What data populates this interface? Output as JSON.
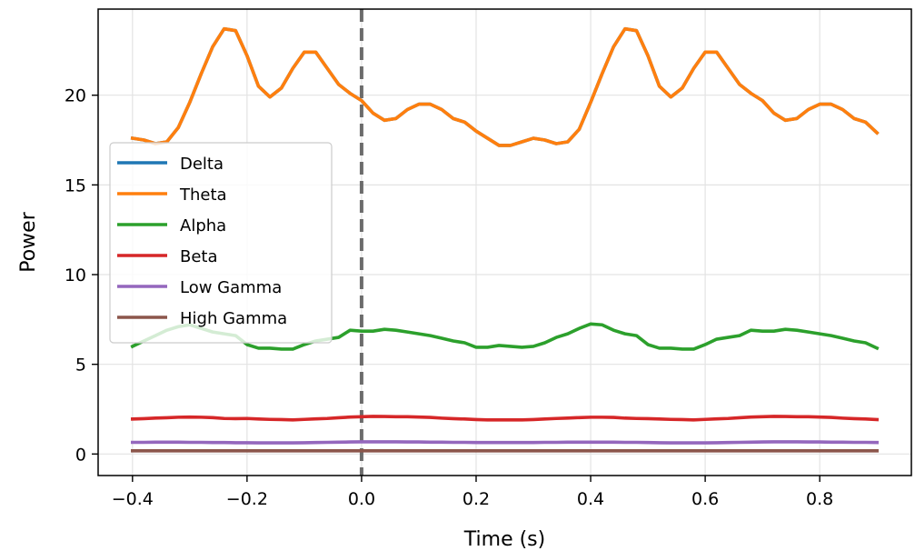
{
  "chart_data": {
    "type": "line",
    "xlabel": "Time (s)",
    "ylabel": "Power",
    "xlim": [
      -0.46,
      0.96
    ],
    "ylim": [
      -1.2,
      24.8
    ],
    "xticks": [
      -0.4,
      -0.2,
      0.0,
      0.2,
      0.4,
      0.6,
      0.8
    ],
    "xtick_labels": [
      "−0.4",
      "−0.2",
      "0.0",
      "0.2",
      "0.4",
      "0.6",
      "0.8"
    ],
    "yticks": [
      0,
      5,
      10,
      15,
      20
    ],
    "ytick_labels": [
      "0",
      "5",
      "10",
      "15",
      "20"
    ],
    "grid": true,
    "legend_position": "center-left",
    "event_marker": {
      "x": 0.0,
      "style": "dashed",
      "color": "#555555"
    },
    "x": [
      -0.4,
      -0.38,
      -0.36,
      -0.34,
      -0.32,
      -0.3,
      -0.28,
      -0.26,
      -0.24,
      -0.22,
      -0.2,
      -0.18,
      -0.16,
      -0.14,
      -0.12,
      -0.1,
      -0.08,
      -0.06,
      -0.04,
      -0.02,
      0.0,
      0.02,
      0.04,
      0.06,
      0.08,
      0.1,
      0.12,
      0.14,
      0.16,
      0.18,
      0.2,
      0.22,
      0.24,
      0.26,
      0.28,
      0.3,
      0.32,
      0.34,
      0.36,
      0.38,
      0.4,
      0.42,
      0.44,
      0.46,
      0.48,
      0.5,
      0.52,
      0.54,
      0.56,
      0.58,
      0.6,
      0.62,
      0.64,
      0.66,
      0.68,
      0.7,
      0.72,
      0.74,
      0.76,
      0.78,
      0.8,
      0.82,
      0.84,
      0.86,
      0.88,
      0.9
    ],
    "series": [
      {
        "name": "Delta",
        "color": "#1f77b4",
        "values": [
          17.6,
          17.5,
          17.3,
          17.4,
          18.2,
          19.6,
          21.2,
          22.7,
          23.7,
          23.6,
          22.2,
          20.5,
          19.9,
          20.4,
          21.5,
          22.4,
          22.4,
          21.5,
          20.6,
          20.1,
          19.7,
          19.0,
          18.6,
          18.7,
          19.2,
          19.5,
          19.5,
          19.2,
          18.7,
          18.5,
          18.0,
          17.6,
          17.2,
          17.2,
          17.4,
          17.6,
          17.5,
          17.3,
          17.4,
          18.1,
          19.6,
          21.2,
          22.7,
          23.7,
          23.6,
          22.2,
          20.5,
          19.9,
          20.4,
          21.5,
          22.4,
          22.4,
          21.5,
          20.6,
          20.1,
          19.7,
          19.0,
          18.6,
          18.7,
          19.2,
          19.5,
          19.5,
          19.2,
          18.7,
          18.5,
          17.9
        ]
      },
      {
        "name": "Theta",
        "color": "#ff7f0e",
        "values": [
          17.6,
          17.5,
          17.3,
          17.4,
          18.2,
          19.6,
          21.2,
          22.7,
          23.7,
          23.6,
          22.2,
          20.5,
          19.9,
          20.4,
          21.5,
          22.4,
          22.4,
          21.5,
          20.6,
          20.1,
          19.7,
          19.0,
          18.6,
          18.7,
          19.2,
          19.5,
          19.5,
          19.2,
          18.7,
          18.5,
          18.0,
          17.6,
          17.2,
          17.2,
          17.4,
          17.6,
          17.5,
          17.3,
          17.4,
          18.1,
          19.6,
          21.2,
          22.7,
          23.7,
          23.6,
          22.2,
          20.5,
          19.9,
          20.4,
          21.5,
          22.4,
          22.4,
          21.5,
          20.6,
          20.1,
          19.7,
          19.0,
          18.6,
          18.7,
          19.2,
          19.5,
          19.5,
          19.2,
          18.7,
          18.5,
          17.9
        ]
      },
      {
        "name": "Alpha",
        "color": "#2ca02c",
        "values": [
          6.0,
          6.3,
          6.6,
          6.9,
          7.1,
          7.2,
          7.0,
          6.8,
          6.7,
          6.6,
          6.1,
          5.9,
          5.9,
          5.85,
          5.85,
          6.1,
          6.3,
          6.4,
          6.5,
          6.9,
          6.85,
          6.85,
          6.95,
          6.9,
          6.8,
          6.7,
          6.6,
          6.45,
          6.3,
          6.2,
          5.95,
          5.95,
          6.05,
          6.0,
          5.95,
          6.0,
          6.2,
          6.5,
          6.7,
          7.0,
          7.25,
          7.2,
          6.9,
          6.7,
          6.6,
          6.1,
          5.9,
          5.9,
          5.85,
          5.85,
          6.1,
          6.4,
          6.5,
          6.6,
          6.9,
          6.85,
          6.85,
          6.95,
          6.9,
          6.8,
          6.7,
          6.6,
          6.45,
          6.3,
          6.2,
          5.9
        ]
      },
      {
        "name": "Beta",
        "color": "#d62728",
        "values": [
          1.95,
          1.97,
          2.0,
          2.02,
          2.05,
          2.06,
          2.05,
          2.03,
          1.98,
          1.97,
          1.98,
          1.95,
          1.93,
          1.92,
          1.9,
          1.93,
          1.96,
          1.98,
          2.02,
          2.06,
          2.08,
          2.1,
          2.09,
          2.08,
          2.08,
          2.06,
          2.04,
          2.0,
          1.97,
          1.95,
          1.92,
          1.9,
          1.9,
          1.9,
          1.9,
          1.92,
          1.95,
          1.98,
          2.0,
          2.03,
          2.05,
          2.05,
          2.04,
          2.0,
          1.98,
          1.97,
          1.95,
          1.93,
          1.92,
          1.9,
          1.93,
          1.96,
          1.98,
          2.02,
          2.06,
          2.08,
          2.1,
          2.09,
          2.08,
          2.08,
          2.06,
          2.04,
          2.0,
          1.97,
          1.95,
          1.92
        ]
      },
      {
        "name": "Low Gamma",
        "color": "#9467bd",
        "values": [
          0.65,
          0.65,
          0.66,
          0.66,
          0.66,
          0.65,
          0.65,
          0.64,
          0.64,
          0.63,
          0.63,
          0.62,
          0.62,
          0.62,
          0.62,
          0.63,
          0.64,
          0.65,
          0.66,
          0.67,
          0.68,
          0.68,
          0.68,
          0.68,
          0.67,
          0.67,
          0.66,
          0.66,
          0.65,
          0.65,
          0.64,
          0.64,
          0.64,
          0.64,
          0.64,
          0.64,
          0.65,
          0.65,
          0.66,
          0.66,
          0.66,
          0.66,
          0.66,
          0.65,
          0.65,
          0.64,
          0.63,
          0.62,
          0.62,
          0.62,
          0.62,
          0.63,
          0.64,
          0.65,
          0.66,
          0.67,
          0.68,
          0.68,
          0.68,
          0.67,
          0.67,
          0.66,
          0.66,
          0.65,
          0.65,
          0.64
        ]
      },
      {
        "name": "High Gamma",
        "color": "#8c564b",
        "values": [
          0.18,
          0.18,
          0.18,
          0.18,
          0.18,
          0.18,
          0.18,
          0.18,
          0.18,
          0.18,
          0.18,
          0.18,
          0.18,
          0.18,
          0.18,
          0.18,
          0.18,
          0.18,
          0.18,
          0.18,
          0.18,
          0.18,
          0.18,
          0.18,
          0.18,
          0.18,
          0.18,
          0.18,
          0.18,
          0.18,
          0.18,
          0.18,
          0.18,
          0.18,
          0.18,
          0.18,
          0.18,
          0.18,
          0.18,
          0.18,
          0.18,
          0.18,
          0.18,
          0.18,
          0.18,
          0.18,
          0.18,
          0.18,
          0.18,
          0.18,
          0.18,
          0.18,
          0.18,
          0.18,
          0.18,
          0.18,
          0.18,
          0.18,
          0.18,
          0.18,
          0.18,
          0.18,
          0.18,
          0.18,
          0.18,
          0.18
        ]
      }
    ]
  }
}
